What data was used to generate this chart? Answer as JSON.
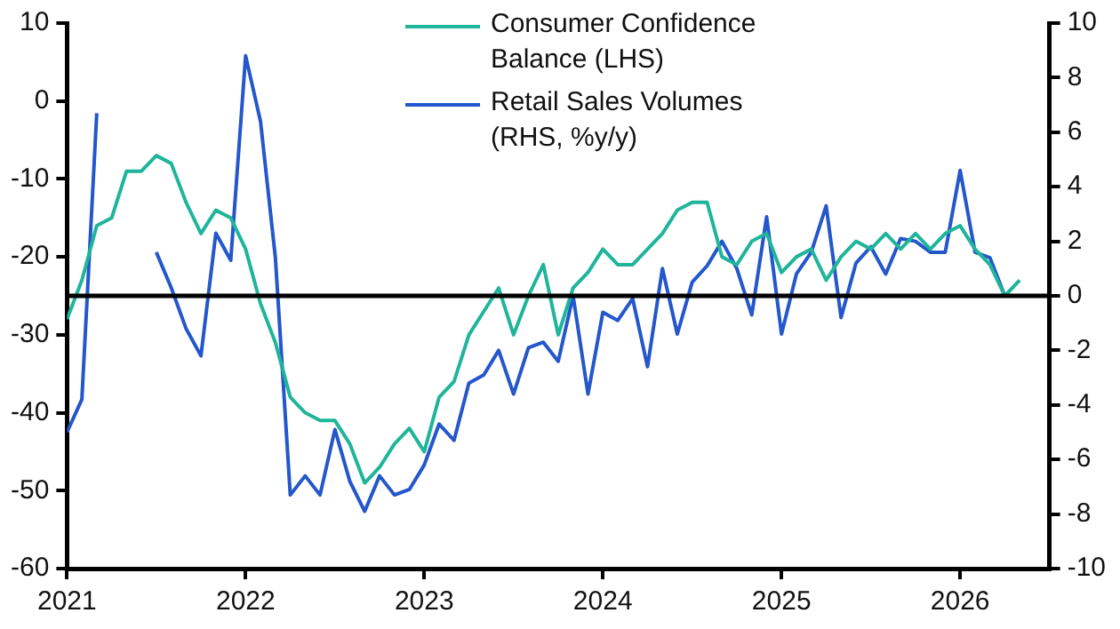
{
  "chart_data": {
    "type": "line",
    "x": [
      "2021-01",
      "2021-02",
      "2021-03",
      "2021-04",
      "2021-05",
      "2021-06",
      "2021-07",
      "2021-08",
      "2021-09",
      "2021-10",
      "2021-11",
      "2021-12",
      "2022-01",
      "2022-02",
      "2022-03",
      "2022-04",
      "2022-05",
      "2022-06",
      "2022-07",
      "2022-08",
      "2022-09",
      "2022-10",
      "2022-11",
      "2022-12",
      "2023-01",
      "2023-02",
      "2023-03",
      "2023-04",
      "2023-05",
      "2023-06",
      "2023-07",
      "2023-08",
      "2023-09",
      "2023-10",
      "2023-11",
      "2023-12",
      "2024-01",
      "2024-02",
      "2024-03",
      "2024-04",
      "2024-05",
      "2024-06",
      "2024-07",
      "2024-08",
      "2024-09",
      "2024-10",
      "2024-11",
      "2024-12",
      "2025-01",
      "2025-02",
      "2025-03",
      "2025-04",
      "2025-05",
      "2025-06",
      "2025-07",
      "2025-08",
      "2025-09",
      "2025-10",
      "2025-11",
      "2025-12",
      "2026-01",
      "2026-02",
      "2026-03",
      "2026-04",
      "2026-05"
    ],
    "series": [
      {
        "name": "Consumer Confidence Balance (LHS)",
        "color": "#1fb59a",
        "values": [
          -28,
          -23,
          -16,
          -15,
          -9,
          -9,
          -7,
          -8,
          -13,
          -17,
          -14,
          -15,
          -19,
          -26,
          -31,
          -38,
          -40,
          -41,
          -41,
          -44,
          -49,
          -47,
          -44,
          -42,
          -45,
          -38,
          -36,
          -30,
          -27,
          -24,
          -30,
          -25,
          -21,
          -30,
          -24,
          -22,
          -19,
          -21,
          -21,
          -19,
          -17,
          -14,
          -13,
          -13,
          -20,
          -21,
          -18,
          -17,
          -22,
          -20,
          -19,
          -23,
          -20,
          -18,
          -19,
          -17,
          -19,
          -17,
          -19,
          -17,
          -16,
          -19,
          -21,
          -25,
          -23
        ]
      },
      {
        "name": "Retail Sales Volumes (RHS, %y/y)",
        "color": "#2457cc",
        "axis": "y2",
        "values": [
          -5,
          -3.8,
          6.7,
          null,
          null,
          null,
          1.6,
          0.3,
          -1.2,
          -2.2,
          2.3,
          1.3,
          8.8,
          6.4,
          1.4,
          -7.3,
          -6.6,
          -7.3,
          -4.9,
          -6.8,
          -7.9,
          -6.6,
          -7.3,
          -7.1,
          -6.2,
          -4.7,
          -5.3,
          -3.2,
          -2.9,
          -2,
          -3.6,
          -1.9,
          -1.7,
          -2.4,
          0,
          -3.6,
          -0.6,
          -0.9,
          -0.1,
          -2.6,
          1,
          -1.4,
          0.5,
          1.1,
          2,
          1,
          -0.7,
          2.9,
          -1.4,
          0.8,
          1.6,
          3.3,
          -0.8,
          1.2,
          1.8,
          0.8,
          2.1,
          2,
          1.6,
          1.6,
          4.6,
          1.6,
          1.4,
          0,
          null
        ]
      }
    ],
    "xlim": [
      "2021-01",
      "2026-07"
    ],
    "xticks": [
      "2021",
      "2022",
      "2023",
      "2024",
      "2025",
      "2026"
    ],
    "ylim": [
      -60,
      10
    ],
    "yticks": [
      -60,
      -50,
      -40,
      -30,
      -20,
      -10,
      0,
      10
    ],
    "y2lim": [
      -10,
      10
    ],
    "y2ticks": [
      -10,
      -8,
      -6,
      -4,
      -2,
      0,
      2,
      4,
      6,
      8,
      10
    ],
    "ref_lines": [
      {
        "axis": "y2",
        "value": 0,
        "color": "#000000"
      }
    ],
    "grid": false,
    "legend": "top",
    "marker": "none",
    "line_style": "solid"
  }
}
